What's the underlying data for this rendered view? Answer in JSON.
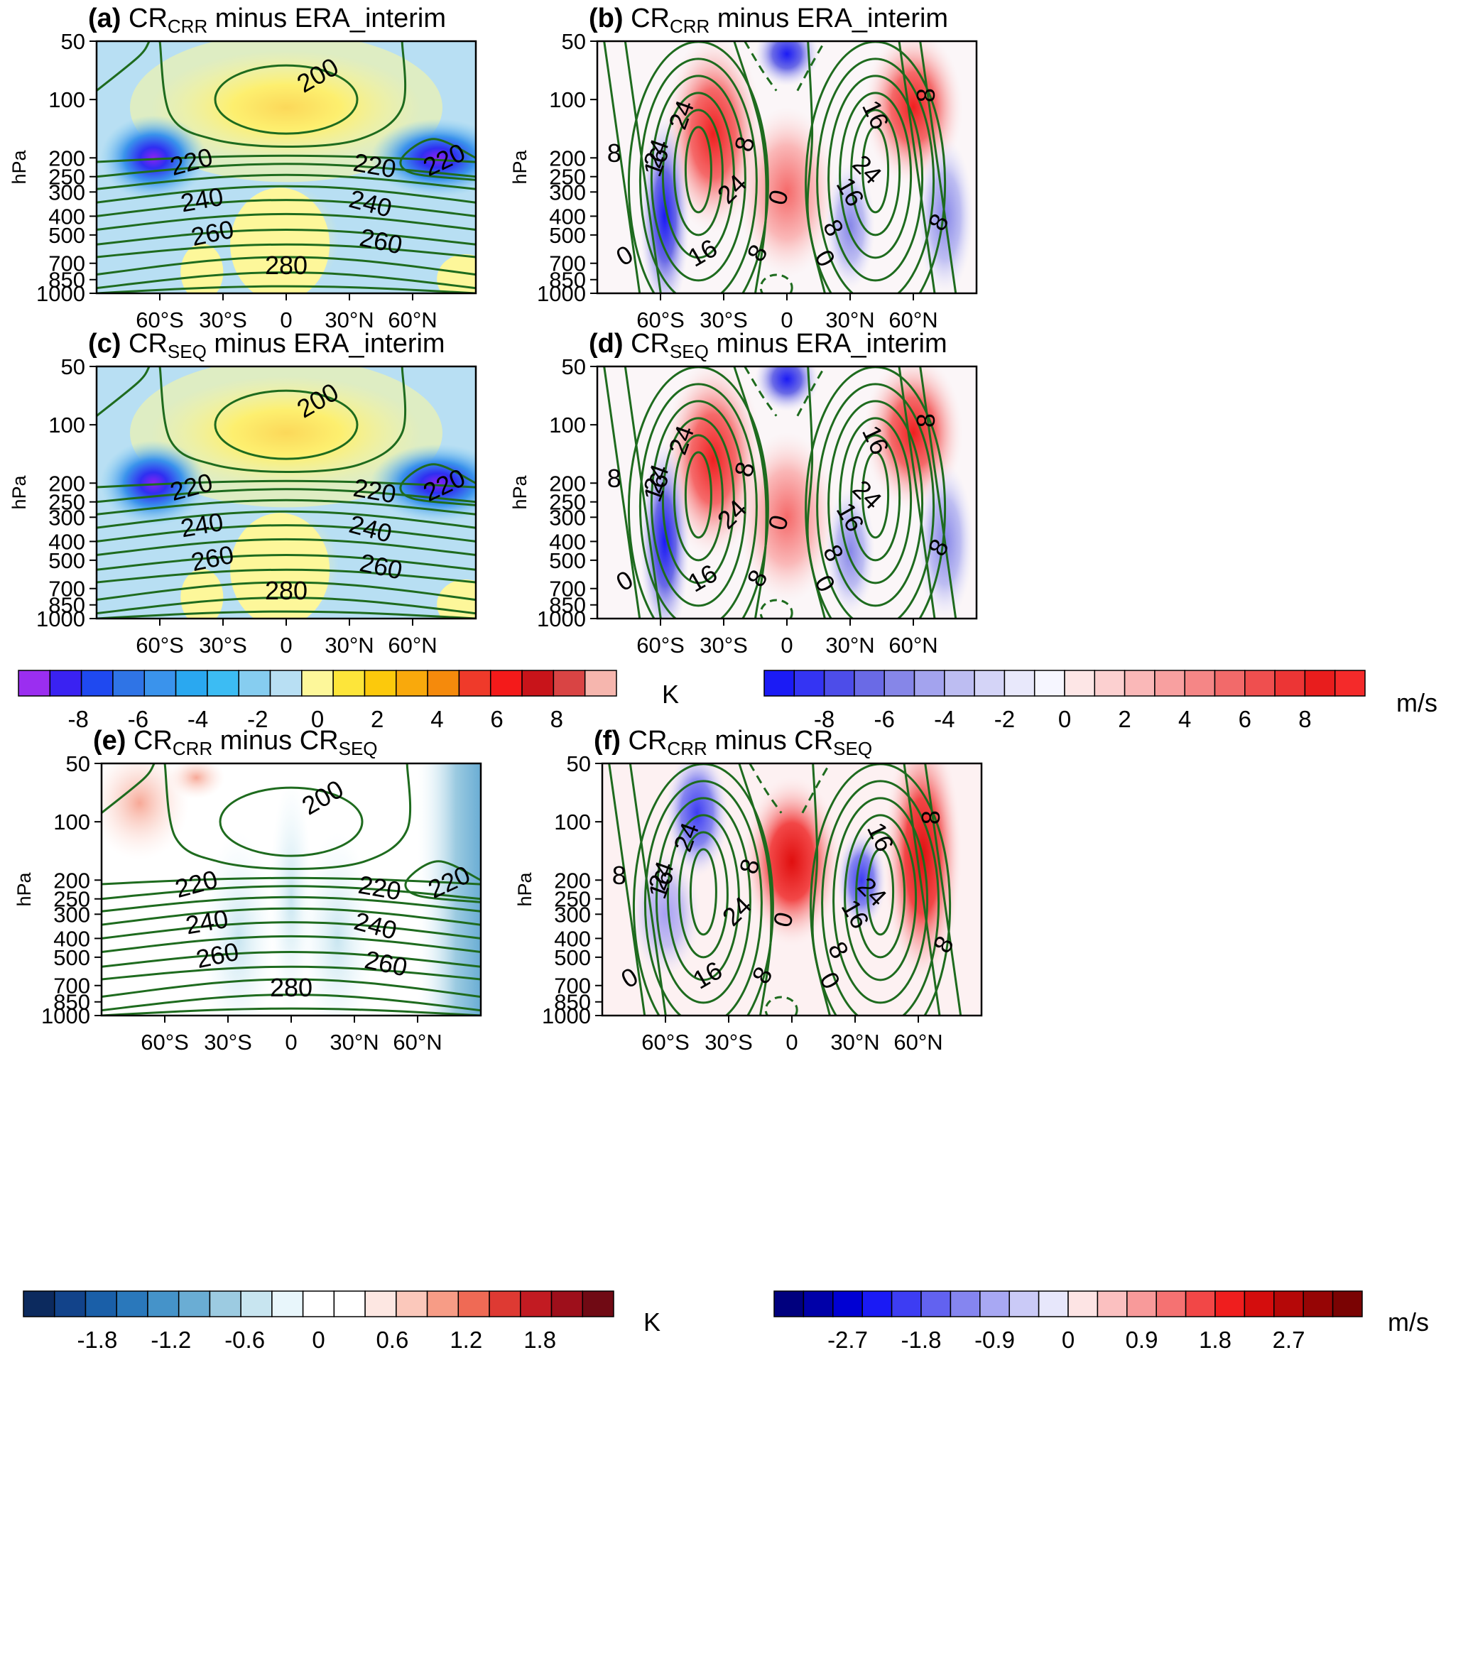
{
  "figure": {
    "panels": [
      {
        "id": "a",
        "letter": "(a)",
        "title_main": "CR",
        "title_sub": "CRR",
        "title_rest": " minus ERA_interim",
        "variable": "temperature"
      },
      {
        "id": "b",
        "letter": "(b)",
        "title_main": "CR",
        "title_sub": "CRR",
        "title_rest": " minus ERA_interim",
        "variable": "zonal_wind"
      },
      {
        "id": "c",
        "letter": "(c)",
        "title_main": "CR",
        "title_sub": "SEQ",
        "title_rest": " minus ERA_interim",
        "variable": "temperature"
      },
      {
        "id": "d",
        "letter": "(d)",
        "title_main": "CR",
        "title_sub": "SEQ",
        "title_rest": " minus ERA_interim",
        "variable": "zonal_wind"
      },
      {
        "id": "e",
        "letter": "(e)",
        "title_main": "CR",
        "title_sub": "CRR",
        "title_rest": " minus CR",
        "title_sub2": "SEQ",
        "variable": "temperature"
      },
      {
        "id": "f",
        "letter": "(f)",
        "title_main": "CR",
        "title_sub": "CRR",
        "title_rest": " minus CR",
        "title_sub2": "SEQ",
        "variable": "zonal_wind"
      }
    ],
    "y_axis_label": "hPa",
    "y_ticks": [
      "50",
      "100",
      "200",
      "250",
      "300",
      "400",
      "500",
      "700",
      "850",
      "1000"
    ],
    "x_ticks": [
      "60°S",
      "30°S",
      "0",
      "30°N",
      "60°N"
    ],
    "colorbars": [
      {
        "id": "cb-temp-1",
        "labels": [
          "-8",
          "-6",
          "-4",
          "-2",
          "0",
          "2",
          "4",
          "6",
          "8"
        ],
        "unit": "K",
        "colors": [
          "#9b2ef0",
          "#3a22f2",
          "#1f49f0",
          "#2f74e6",
          "#3a93ec",
          "#2aa8f0",
          "#3cbcf3",
          "#86cdf0",
          "#b8dff3",
          "#fdf79a",
          "#fde53a",
          "#fcc90c",
          "#f9a90c",
          "#f58a0c",
          "#ef3a2a",
          "#f41a1a",
          "#c8141a",
          "#d94444",
          "#f6b6ae"
        ]
      },
      {
        "id": "cb-wind-1",
        "labels": [
          "-8",
          "-6",
          "-4",
          "-2",
          "0",
          "2",
          "4",
          "6",
          "8"
        ],
        "unit": "m/s",
        "colors": [
          "#1b1bf5",
          "#3434f3",
          "#4d4de9",
          "#6a6ae6",
          "#8686e8",
          "#a3a3ee",
          "#bdbdf2",
          "#d4d4f7",
          "#e8e8fb",
          "#f6f6ff",
          "#fde6e6",
          "#fcd0d0",
          "#fab8b8",
          "#f8a0a0",
          "#f58686",
          "#f26a6a",
          "#ef4f4f",
          "#ec3535",
          "#e81d1d",
          "#f42a2a"
        ]
      },
      {
        "id": "cb-temp-2",
        "labels": [
          "-1.8",
          "-1.2",
          "-0.6",
          "0",
          "0.6",
          "1.2",
          "1.8"
        ],
        "unit": "K",
        "colors": [
          "#0c2a5e",
          "#12438a",
          "#1a5fa8",
          "#2a78bb",
          "#4593c9",
          "#6aadd4",
          "#9ccbe1",
          "#c8e5f0",
          "#e8f6fb",
          "#ffffff",
          "#ffffff",
          "#fde7e2",
          "#fbc8bb",
          "#f79c86",
          "#ef6a55",
          "#de3a33",
          "#c21b22",
          "#9e0f1b",
          "#700a14"
        ]
      },
      {
        "id": "cb-wind-2",
        "labels": [
          "-2.7",
          "-1.8",
          "-0.9",
          "0",
          "0.9",
          "1.8",
          "2.7"
        ],
        "unit": "m/s",
        "colors": [
          "#00007e",
          "#0000a8",
          "#0000d3",
          "#1a1af5",
          "#3d3df3",
          "#6262f0",
          "#8585f0",
          "#a8a8f3",
          "#cacaf7",
          "#e7e7fb",
          "#fde4e4",
          "#fbc0c0",
          "#f89a9a",
          "#f57272",
          "#f24747",
          "#ef1e1e",
          "#d40d0d",
          "#b50808",
          "#960505",
          "#7a0303"
        ]
      }
    ]
  },
  "chart_data": [
    {
      "type": "heatmap",
      "panel": "a",
      "title": "(a) CRCRR minus ERA_interim",
      "ylabel": "hPa",
      "xlabel": "",
      "x_categories": [
        "60°S",
        "30°S",
        "0",
        "30°N",
        "60°N"
      ],
      "y_levels": [
        50,
        100,
        200,
        250,
        300,
        400,
        500,
        700,
        850,
        1000
      ],
      "contour_labels": [
        "200",
        "220",
        "220",
        "220",
        "240",
        "240",
        "260",
        "260",
        "280"
      ],
      "colorbar_unit": "K",
      "colorbar_range": [
        -9,
        9
      ]
    },
    {
      "type": "heatmap",
      "panel": "b",
      "title": "(b) CRCRR minus ERA_interim",
      "ylabel": "hPa",
      "xlabel": "",
      "x_categories": [
        "60°S",
        "30°S",
        "0",
        "30°N",
        "60°N"
      ],
      "y_levels": [
        50,
        100,
        200,
        250,
        300,
        400,
        500,
        700,
        850,
        1000
      ],
      "contour_labels": [
        "24",
        "8",
        "16",
        "24",
        "24",
        "0",
        "8",
        "16",
        "8",
        "16",
        "24",
        "16",
        "8",
        "8",
        "0",
        "0",
        "8"
      ],
      "colorbar_unit": "m/s",
      "colorbar_range": [
        -9,
        9
      ]
    },
    {
      "type": "heatmap",
      "panel": "c",
      "title": "(c) CRSEQ minus ERA_interim",
      "ylabel": "hPa",
      "xlabel": "",
      "x_categories": [
        "60°S",
        "30°S",
        "0",
        "30°N",
        "60°N"
      ],
      "y_levels": [
        50,
        100,
        200,
        250,
        300,
        400,
        500,
        700,
        850,
        1000
      ],
      "contour_labels": [
        "200",
        "220",
        "220",
        "220",
        "240",
        "240",
        "260",
        "260",
        "280"
      ],
      "colorbar_unit": "K",
      "colorbar_range": [
        -9,
        9
      ]
    },
    {
      "type": "heatmap",
      "panel": "d",
      "title": "(d) CRSEQ minus ERA_interim",
      "ylabel": "hPa",
      "xlabel": "",
      "x_categories": [
        "60°S",
        "30°S",
        "0",
        "30°N",
        "60°N"
      ],
      "y_levels": [
        50,
        100,
        200,
        250,
        300,
        400,
        500,
        700,
        850,
        1000
      ],
      "contour_labels": [
        "24",
        "8",
        "16",
        "24",
        "24",
        "0",
        "8",
        "16",
        "8",
        "16",
        "24",
        "16",
        "8",
        "8",
        "0",
        "0",
        "8"
      ],
      "colorbar_unit": "m/s",
      "colorbar_range": [
        -9,
        9
      ]
    },
    {
      "type": "heatmap",
      "panel": "e",
      "title": "(e) CRCRR minus CRSEQ",
      "ylabel": "hPa",
      "xlabel": "",
      "x_categories": [
        "60°S",
        "30°S",
        "0",
        "30°N",
        "60°N"
      ],
      "y_levels": [
        50,
        100,
        200,
        250,
        300,
        400,
        500,
        700,
        850,
        1000
      ],
      "contour_labels": [
        "200",
        "220",
        "220",
        "220",
        "240",
        "240",
        "260",
        "260",
        "280"
      ],
      "colorbar_unit": "K",
      "colorbar_range": [
        -1.8,
        1.8
      ]
    },
    {
      "type": "heatmap",
      "panel": "f",
      "title": "(f) CRCRR minus CRSEQ",
      "ylabel": "hPa",
      "xlabel": "",
      "x_categories": [
        "60°S",
        "30°S",
        "0",
        "30°N",
        "60°N"
      ],
      "y_levels": [
        50,
        100,
        200,
        250,
        300,
        400,
        500,
        700,
        850,
        1000
      ],
      "contour_labels": [
        "24",
        "8",
        "16",
        "24",
        "24",
        "0",
        "8",
        "16",
        "8",
        "16",
        "24",
        "16",
        "8",
        "8",
        "0",
        "0",
        "8"
      ],
      "colorbar_unit": "m/s",
      "colorbar_range": [
        -2.7,
        2.7
      ]
    }
  ]
}
